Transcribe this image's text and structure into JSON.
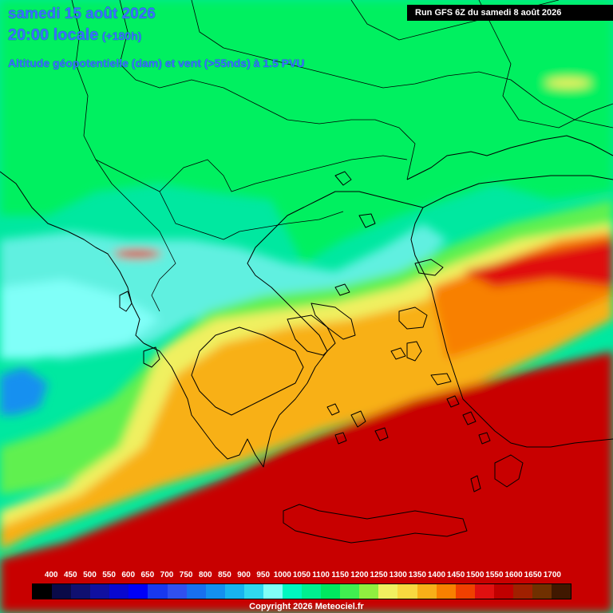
{
  "header": {
    "date_line": "samedi 15 août 2026",
    "time_line": "20:00 locale",
    "offset": "(+180h)",
    "parameter": "Altitude géopotentielle (dam) et vent (>55nds) à 1.5 PVU",
    "run_info": "Run GFS 6Z du samedi 8 août 2026"
  },
  "scale": {
    "labels": [
      "400",
      "450",
      "500",
      "550",
      "600",
      "650",
      "700",
      "750",
      "800",
      "850",
      "900",
      "950",
      "1000",
      "1050",
      "1100",
      "1150",
      "1200",
      "1250",
      "1300",
      "1350",
      "1400",
      "1450",
      "1500",
      "1550",
      "1600",
      "1650",
      "1700"
    ],
    "colors": [
      "#000000",
      "#0a0a48",
      "#101070",
      "#1010a0",
      "#0808d0",
      "#0000f8",
      "#1838f0",
      "#3050f0",
      "#1870f0",
      "#1490f0",
      "#18b4f0",
      "#30d8f0",
      "#80fff8",
      "#00f8c0",
      "#00f090",
      "#00e860",
      "#40f050",
      "#90f040",
      "#f0f060",
      "#f8d840",
      "#f8b018",
      "#f88000",
      "#f04000",
      "#e01010",
      "#c00000",
      "#a02000",
      "#703000",
      "#401800"
    ]
  },
  "footer": {
    "copyright": "Copyright 2026 Meteociel.fr"
  },
  "map_colors": {
    "green": "#00f060",
    "teal": "#00e8a0",
    "cyan": "#60f0e0",
    "light_cyan": "#80fff8",
    "light_green": "#60f050",
    "yellow": "#f0f060",
    "orange": "#f8b018",
    "dark_orange": "#f88000",
    "red": "#c80000",
    "bright_red": "#e01010",
    "blue": "#1890f0"
  }
}
